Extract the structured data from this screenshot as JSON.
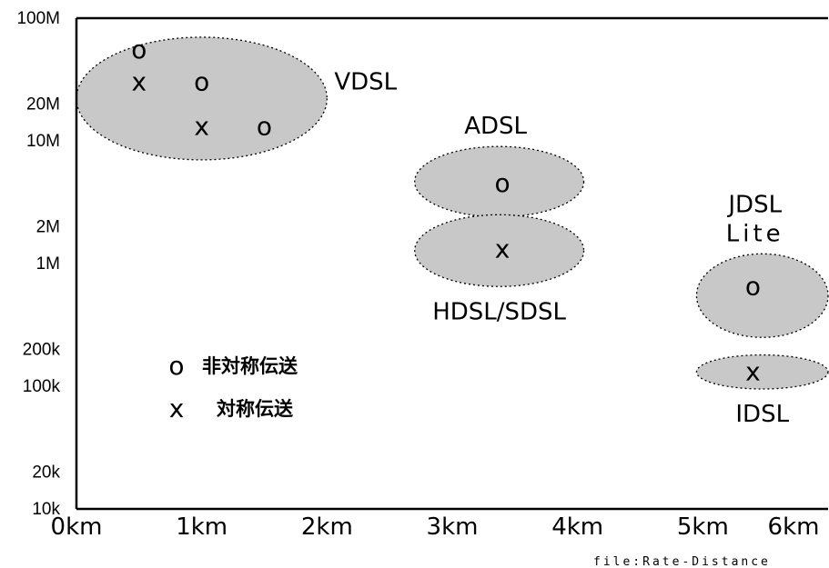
{
  "chart_data": {
    "type": "scatter",
    "xscale": "linear",
    "yscale": "log",
    "xlim": [
      0,
      6
    ],
    "ylim": [
      10000,
      100000000
    ],
    "x_ticks": [
      {
        "value": 0,
        "label": "0km"
      },
      {
        "value": 1,
        "label": "1km"
      },
      {
        "value": 2,
        "label": "2km"
      },
      {
        "value": 3,
        "label": "3km"
      },
      {
        "value": 4,
        "label": "4km"
      },
      {
        "value": 5,
        "label": "5km"
      },
      {
        "value": 6,
        "label": "6km"
      }
    ],
    "y_ticks": [
      {
        "value": 100000000,
        "label": "100M"
      },
      {
        "value": 20000000,
        "label": "20M"
      },
      {
        "value": 10000000,
        "label": "10M"
      },
      {
        "value": 2000000,
        "label": "2M"
      },
      {
        "value": 1000000,
        "label": "1M"
      },
      {
        "value": 200000,
        "label": "200k"
      },
      {
        "value": 100000,
        "label": "100k"
      },
      {
        "value": 20000,
        "label": "20k"
      },
      {
        "value": 10000,
        "label": "10k"
      }
    ],
    "regions": [
      {
        "name": "VDSL",
        "label_lines": [
          "VDSL"
        ],
        "label_pos": "right",
        "x_range": [
          0,
          2
        ],
        "y_range": [
          7000000,
          70000000
        ]
      },
      {
        "name": "ADSL",
        "label_lines": [
          "ADSL"
        ],
        "label_pos": "top",
        "x_range": [
          2.7,
          4.05
        ],
        "y_range": [
          2400000,
          9000000
        ]
      },
      {
        "name": "HDSL/SDSL",
        "label_lines": [
          "HDSL/SDSL"
        ],
        "label_pos": "bottom",
        "x_range": [
          2.7,
          4.05
        ],
        "y_range": [
          650000,
          2500000
        ]
      },
      {
        "name": "JDSL Lite",
        "label_lines": [
          "JDSL",
          "Lite"
        ],
        "label_pos": "top",
        "x_range": [
          4.95,
          6.0
        ],
        "y_range": [
          250000,
          1200000
        ]
      },
      {
        "name": "IDSL",
        "label_lines": [
          "IDSL"
        ],
        "label_pos": "bottom",
        "x_range": [
          4.95,
          6.0
        ],
        "y_range": [
          95000,
          180000
        ]
      }
    ],
    "series": [
      {
        "symbol": "o",
        "name": "非対称伝送",
        "points": [
          {
            "x": 0.5,
            "y": 55000000
          },
          {
            "x": 1.0,
            "y": 30000000
          },
          {
            "x": 1.5,
            "y": 13000000
          },
          {
            "x": 3.4,
            "y": 4500000
          },
          {
            "x": 5.4,
            "y": 650000
          }
        ]
      },
      {
        "symbol": "x",
        "name": "対称伝送",
        "points": [
          {
            "x": 0.5,
            "y": 30000000
          },
          {
            "x": 1.0,
            "y": 13000000
          },
          {
            "x": 3.4,
            "y": 1300000
          },
          {
            "x": 5.4,
            "y": 130000
          }
        ]
      }
    ],
    "legend": "bottom-left",
    "grid": false
  },
  "footer": "file:Rate-Distance"
}
